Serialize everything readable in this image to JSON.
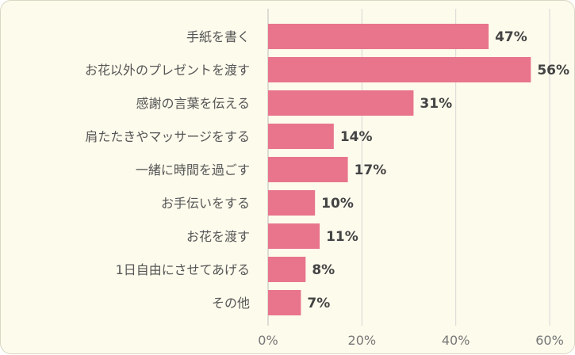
{
  "chart_data": {
    "type": "bar",
    "orientation": "horizontal",
    "categories": [
      "手紙を書く",
      "お花以外のプレゼントを渡す",
      "感謝の言葉を伝える",
      "肩たたきやマッサージをする",
      "一緒に時間を過ごす",
      "お手伝いをする",
      "お花を渡す",
      "1日自由にさせてあげる",
      "その他"
    ],
    "values": [
      47,
      56,
      31,
      14,
      17,
      10,
      11,
      8,
      7
    ],
    "value_labels": [
      "47%",
      "56%",
      "31%",
      "14%",
      "17%",
      "10%",
      "11%",
      "8%",
      "7%"
    ],
    "xlim": [
      0,
      60
    ],
    "xticks": [
      0,
      20,
      40,
      60
    ],
    "xtick_labels": [
      "0%",
      "20%",
      "40%",
      "60%"
    ],
    "grid": true,
    "bar_color": "#e8758c",
    "title": "",
    "xlabel": "",
    "ylabel": ""
  }
}
